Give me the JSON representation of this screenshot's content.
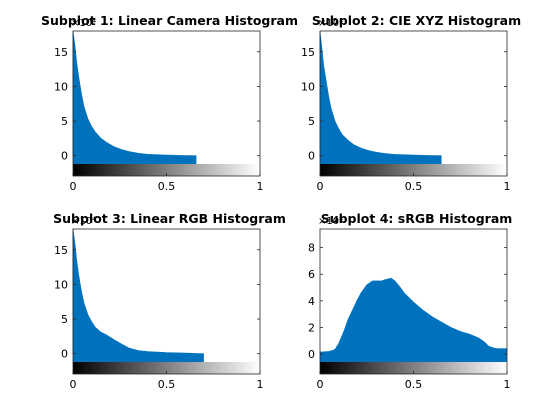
{
  "chart_data": [
    {
      "type": "area",
      "title": "Subplot 1: Linear Camera Histogram",
      "exponent": "×10⁴",
      "color": "#0072bd",
      "xlim": [
        0,
        1
      ],
      "ylim": [
        -1.2,
        18
      ],
      "xticks": [
        "0",
        "0.5",
        "1"
      ],
      "yticks": [
        "0",
        "5",
        "10",
        "15"
      ],
      "x": [
        0,
        0.01,
        0.02,
        0.03,
        0.04,
        0.05,
        0.06,
        0.08,
        0.1,
        0.12,
        0.15,
        0.18,
        0.22,
        0.26,
        0.3,
        0.35,
        0.4,
        0.5,
        0.6,
        0.66
      ],
      "y": [
        18,
        16,
        13.5,
        11.5,
        9.8,
        8.3,
        7.0,
        5.3,
        4.2,
        3.4,
        2.5,
        1.9,
        1.3,
        0.9,
        0.6,
        0.35,
        0.2,
        0.08,
        0.03,
        0
      ]
    },
    {
      "type": "area",
      "title": "Subplot 2: CIE XYZ Histogram",
      "exponent": "×10⁴",
      "color": "#0072bd",
      "xlim": [
        0,
        1
      ],
      "ylim": [
        -1.2,
        18
      ],
      "xticks": [
        "0",
        "0.5",
        "1"
      ],
      "yticks": [
        "0",
        "5",
        "10",
        "15"
      ],
      "x": [
        0,
        0.01,
        0.02,
        0.03,
        0.04,
        0.05,
        0.06,
        0.08,
        0.1,
        0.12,
        0.15,
        0.18,
        0.22,
        0.26,
        0.3,
        0.35,
        0.4,
        0.5,
        0.6,
        0.65
      ],
      "y": [
        18,
        15.5,
        13,
        11.3,
        9.6,
        8.0,
        6.8,
        5.0,
        3.9,
        3.0,
        2.2,
        1.6,
        1.1,
        0.75,
        0.5,
        0.3,
        0.18,
        0.08,
        0.03,
        0
      ]
    },
    {
      "type": "area",
      "title": "Subplot 3: Linear RGB Histogram",
      "exponent": "×10⁴",
      "color": "#0072bd",
      "xlim": [
        0,
        1
      ],
      "ylim": [
        -1.2,
        18
      ],
      "xticks": [
        "0",
        "0.5",
        "1"
      ],
      "yticks": [
        "0",
        "5",
        "10",
        "15"
      ],
      "x": [
        0,
        0.01,
        0.02,
        0.03,
        0.04,
        0.05,
        0.06,
        0.08,
        0.1,
        0.12,
        0.15,
        0.18,
        0.22,
        0.26,
        0.3,
        0.35,
        0.4,
        0.5,
        0.6,
        0.7
      ],
      "y": [
        18,
        16,
        13.5,
        11.5,
        9.8,
        8.4,
        7.2,
        5.6,
        4.6,
        3.8,
        3.1,
        2.7,
        2.0,
        1.4,
        0.8,
        0.45,
        0.3,
        0.15,
        0.08,
        0
      ]
    },
    {
      "type": "area",
      "title": "Subplot 4: sRGB Histogram",
      "exponent": "×10⁴",
      "color": "#0072bd",
      "xlim": [
        0,
        1
      ],
      "ylim": [
        -0.6,
        9.4
      ],
      "xticks": [
        "0",
        "0.5",
        "1"
      ],
      "yticks": [
        "0",
        "2",
        "4",
        "6",
        "8"
      ],
      "x": [
        0,
        0.05,
        0.08,
        0.1,
        0.13,
        0.15,
        0.18,
        0.2,
        0.22,
        0.25,
        0.28,
        0.3,
        0.33,
        0.35,
        0.38,
        0.4,
        0.43,
        0.45,
        0.5,
        0.55,
        0.6,
        0.65,
        0.7,
        0.75,
        0.8,
        0.85,
        0.88,
        0.9,
        0.93,
        0.95,
        1.0
      ],
      "y": [
        0.15,
        0.2,
        0.35,
        0.8,
        1.8,
        2.6,
        3.5,
        4.1,
        4.6,
        5.2,
        5.5,
        5.5,
        5.5,
        5.6,
        5.7,
        5.5,
        5.0,
        4.6,
        3.9,
        3.3,
        2.8,
        2.4,
        2.0,
        1.7,
        1.5,
        1.2,
        0.9,
        0.6,
        0.45,
        0.4,
        0.4
      ]
    }
  ]
}
